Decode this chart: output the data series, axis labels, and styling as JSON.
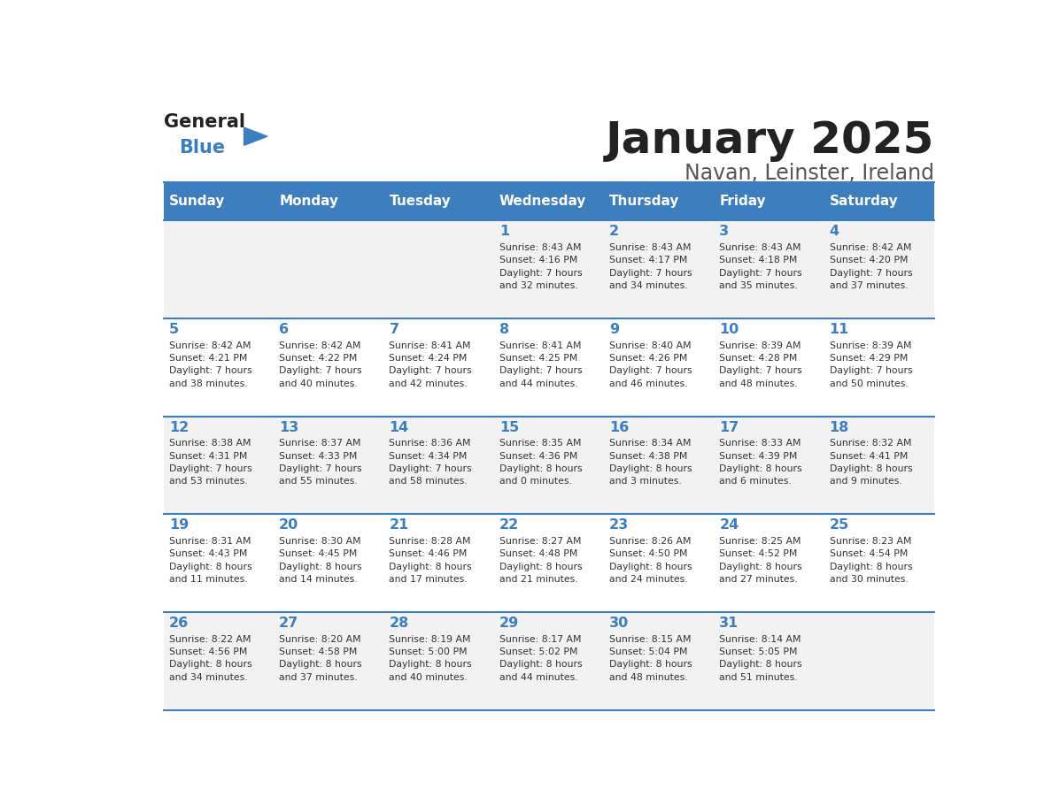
{
  "title": "January 2025",
  "subtitle": "Navan, Leinster, Ireland",
  "header_color": "#3d7ebf",
  "header_text_color": "#ffffff",
  "cell_bg_color": "#f2f2f2",
  "cell_bg_alt": "#ffffff",
  "day_number_color": "#3d7ebf",
  "text_color": "#333333",
  "line_color": "#3d7ebf",
  "days_of_week": [
    "Sunday",
    "Monday",
    "Tuesday",
    "Wednesday",
    "Thursday",
    "Friday",
    "Saturday"
  ],
  "weeks": [
    [
      {
        "day": "",
        "info": ""
      },
      {
        "day": "",
        "info": ""
      },
      {
        "day": "",
        "info": ""
      },
      {
        "day": "1",
        "info": "Sunrise: 8:43 AM\nSunset: 4:16 PM\nDaylight: 7 hours\nand 32 minutes."
      },
      {
        "day": "2",
        "info": "Sunrise: 8:43 AM\nSunset: 4:17 PM\nDaylight: 7 hours\nand 34 minutes."
      },
      {
        "day": "3",
        "info": "Sunrise: 8:43 AM\nSunset: 4:18 PM\nDaylight: 7 hours\nand 35 minutes."
      },
      {
        "day": "4",
        "info": "Sunrise: 8:42 AM\nSunset: 4:20 PM\nDaylight: 7 hours\nand 37 minutes."
      }
    ],
    [
      {
        "day": "5",
        "info": "Sunrise: 8:42 AM\nSunset: 4:21 PM\nDaylight: 7 hours\nand 38 minutes."
      },
      {
        "day": "6",
        "info": "Sunrise: 8:42 AM\nSunset: 4:22 PM\nDaylight: 7 hours\nand 40 minutes."
      },
      {
        "day": "7",
        "info": "Sunrise: 8:41 AM\nSunset: 4:24 PM\nDaylight: 7 hours\nand 42 minutes."
      },
      {
        "day": "8",
        "info": "Sunrise: 8:41 AM\nSunset: 4:25 PM\nDaylight: 7 hours\nand 44 minutes."
      },
      {
        "day": "9",
        "info": "Sunrise: 8:40 AM\nSunset: 4:26 PM\nDaylight: 7 hours\nand 46 minutes."
      },
      {
        "day": "10",
        "info": "Sunrise: 8:39 AM\nSunset: 4:28 PM\nDaylight: 7 hours\nand 48 minutes."
      },
      {
        "day": "11",
        "info": "Sunrise: 8:39 AM\nSunset: 4:29 PM\nDaylight: 7 hours\nand 50 minutes."
      }
    ],
    [
      {
        "day": "12",
        "info": "Sunrise: 8:38 AM\nSunset: 4:31 PM\nDaylight: 7 hours\nand 53 minutes."
      },
      {
        "day": "13",
        "info": "Sunrise: 8:37 AM\nSunset: 4:33 PM\nDaylight: 7 hours\nand 55 minutes."
      },
      {
        "day": "14",
        "info": "Sunrise: 8:36 AM\nSunset: 4:34 PM\nDaylight: 7 hours\nand 58 minutes."
      },
      {
        "day": "15",
        "info": "Sunrise: 8:35 AM\nSunset: 4:36 PM\nDaylight: 8 hours\nand 0 minutes."
      },
      {
        "day": "16",
        "info": "Sunrise: 8:34 AM\nSunset: 4:38 PM\nDaylight: 8 hours\nand 3 minutes."
      },
      {
        "day": "17",
        "info": "Sunrise: 8:33 AM\nSunset: 4:39 PM\nDaylight: 8 hours\nand 6 minutes."
      },
      {
        "day": "18",
        "info": "Sunrise: 8:32 AM\nSunset: 4:41 PM\nDaylight: 8 hours\nand 9 minutes."
      }
    ],
    [
      {
        "day": "19",
        "info": "Sunrise: 8:31 AM\nSunset: 4:43 PM\nDaylight: 8 hours\nand 11 minutes."
      },
      {
        "day": "20",
        "info": "Sunrise: 8:30 AM\nSunset: 4:45 PM\nDaylight: 8 hours\nand 14 minutes."
      },
      {
        "day": "21",
        "info": "Sunrise: 8:28 AM\nSunset: 4:46 PM\nDaylight: 8 hours\nand 17 minutes."
      },
      {
        "day": "22",
        "info": "Sunrise: 8:27 AM\nSunset: 4:48 PM\nDaylight: 8 hours\nand 21 minutes."
      },
      {
        "day": "23",
        "info": "Sunrise: 8:26 AM\nSunset: 4:50 PM\nDaylight: 8 hours\nand 24 minutes."
      },
      {
        "day": "24",
        "info": "Sunrise: 8:25 AM\nSunset: 4:52 PM\nDaylight: 8 hours\nand 27 minutes."
      },
      {
        "day": "25",
        "info": "Sunrise: 8:23 AM\nSunset: 4:54 PM\nDaylight: 8 hours\nand 30 minutes."
      }
    ],
    [
      {
        "day": "26",
        "info": "Sunrise: 8:22 AM\nSunset: 4:56 PM\nDaylight: 8 hours\nand 34 minutes."
      },
      {
        "day": "27",
        "info": "Sunrise: 8:20 AM\nSunset: 4:58 PM\nDaylight: 8 hours\nand 37 minutes."
      },
      {
        "day": "28",
        "info": "Sunrise: 8:19 AM\nSunset: 5:00 PM\nDaylight: 8 hours\nand 40 minutes."
      },
      {
        "day": "29",
        "info": "Sunrise: 8:17 AM\nSunset: 5:02 PM\nDaylight: 8 hours\nand 44 minutes."
      },
      {
        "day": "30",
        "info": "Sunrise: 8:15 AM\nSunset: 5:04 PM\nDaylight: 8 hours\nand 48 minutes."
      },
      {
        "day": "31",
        "info": "Sunrise: 8:14 AM\nSunset: 5:05 PM\nDaylight: 8 hours\nand 51 minutes."
      },
      {
        "day": "",
        "info": ""
      }
    ]
  ],
  "logo_general_color": "#222222",
  "logo_blue_color": "#3d7ebf",
  "logo_triangle_color": "#3d7ebf"
}
